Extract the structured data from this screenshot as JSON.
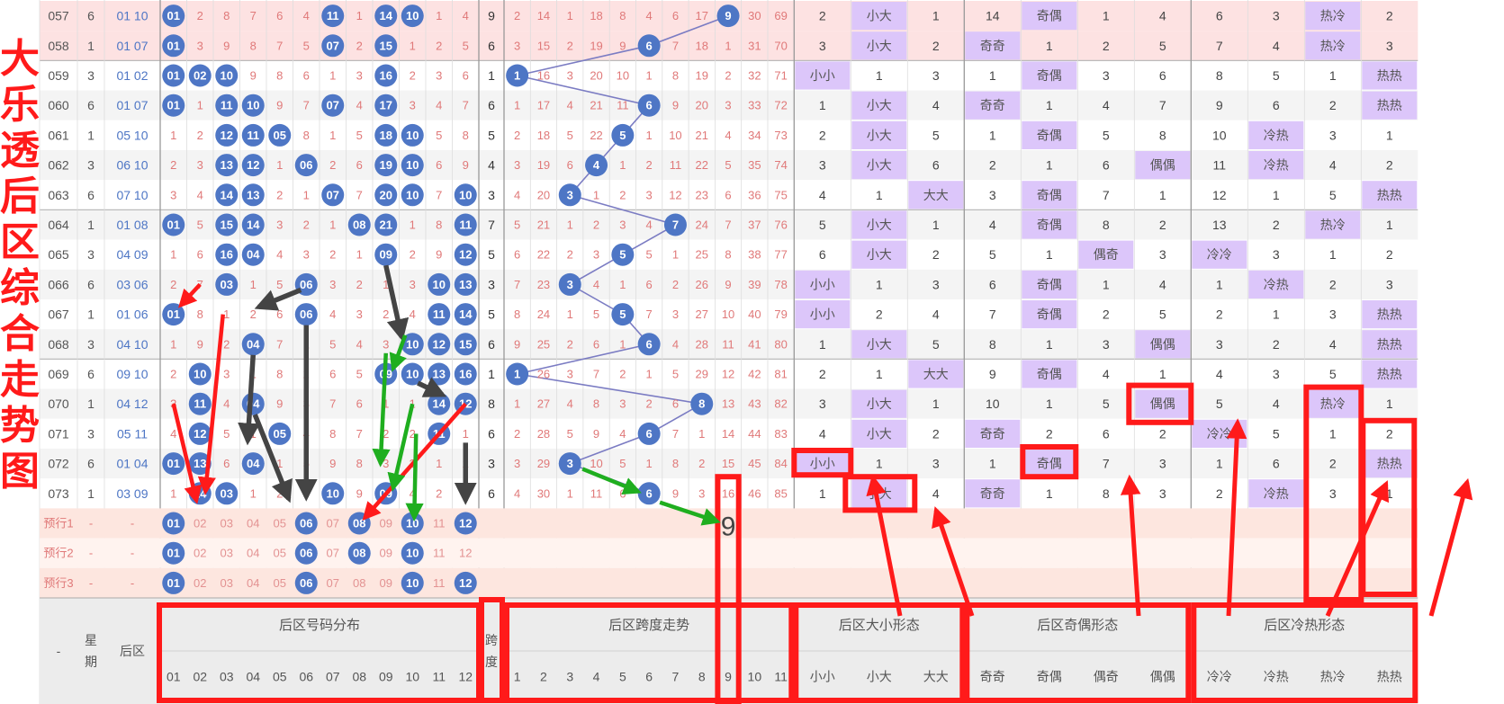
{
  "title_chars": [
    "大",
    "乐",
    "透",
    "后",
    "区",
    "综",
    "合",
    "走",
    "势",
    "图"
  ],
  "colors": {
    "ball": "#4e76c5",
    "miss_text": "#e07979",
    "odd_row_bg": "#fde2e2",
    "highlight_bg": "#dcc6fa",
    "trend_line": "#7b7cc3",
    "annotation_red": "#ff1a1a",
    "arrow_gray": "#444444",
    "arrow_green": "#1fae1f"
  },
  "chart_data": {
    "type": "table",
    "rows": [
      {
        "issue": "057",
        "week": "6",
        "back": "01 10",
        "dist": [
          "01",
          "2",
          "8",
          "7",
          "6",
          "4",
          "11",
          "1",
          "14",
          "10",
          "1",
          "4"
        ],
        "span": "9",
        "spanrow": [
          "2",
          "14",
          "1",
          "18",
          "8",
          "4",
          "6",
          "17",
          "9",
          "30",
          "69"
        ],
        "size": [
          "2",
          "小大",
          "1"
        ],
        "parity": [
          "14",
          "奇偶",
          "1",
          "4"
        ],
        "temp": [
          "6",
          "3",
          "热冷",
          "2"
        ]
      },
      {
        "issue": "058",
        "week": "1",
        "back": "01 07",
        "dist": [
          "01",
          "3",
          "9",
          "8",
          "7",
          "5",
          "07",
          "2",
          "15",
          "1",
          "2",
          "5"
        ],
        "span": "6",
        "spanrow": [
          "3",
          "15",
          "2",
          "19",
          "9",
          "6",
          "7",
          "18",
          "1",
          "31",
          "70"
        ],
        "size": [
          "3",
          "小大",
          "2"
        ],
        "parity": [
          "奇奇",
          "1",
          "2",
          "5"
        ],
        "temp": [
          "7",
          "4",
          "热冷",
          "3"
        ]
      },
      {
        "issue": "059",
        "week": "3",
        "back": "01 02",
        "dist": [
          "01",
          "02",
          "10",
          "9",
          "8",
          "6",
          "1",
          "3",
          "16",
          "2",
          "3",
          "6"
        ],
        "span": "1",
        "spanrow": [
          "1",
          "16",
          "3",
          "20",
          "10",
          "1",
          "8",
          "19",
          "2",
          "32",
          "71"
        ],
        "size": [
          "小小",
          "1",
          "3"
        ],
        "parity": [
          "1",
          "奇偶",
          "3",
          "6"
        ],
        "temp": [
          "8",
          "5",
          "1",
          "热热"
        ]
      },
      {
        "issue": "060",
        "week": "6",
        "back": "01 07",
        "dist": [
          "01",
          "1",
          "11",
          "10",
          "9",
          "7",
          "07",
          "4",
          "17",
          "3",
          "4",
          "7"
        ],
        "span": "6",
        "spanrow": [
          "1",
          "17",
          "4",
          "21",
          "11",
          "6",
          "9",
          "20",
          "3",
          "33",
          "72"
        ],
        "size": [
          "1",
          "小大",
          "4"
        ],
        "parity": [
          "奇奇",
          "1",
          "4",
          "7"
        ],
        "temp": [
          "9",
          "6",
          "2",
          "热热"
        ]
      },
      {
        "issue": "061",
        "week": "1",
        "back": "05 10",
        "dist": [
          "1",
          "2",
          "12",
          "11",
          "05",
          "8",
          "1",
          "5",
          "18",
          "10",
          "5",
          "8"
        ],
        "span": "5",
        "spanrow": [
          "2",
          "18",
          "5",
          "22",
          "5",
          "1",
          "10",
          "21",
          "4",
          "34",
          "73"
        ],
        "size": [
          "2",
          "小大",
          "5"
        ],
        "parity": [
          "1",
          "奇偶",
          "5",
          "8"
        ],
        "temp": [
          "10",
          "冷热",
          "3",
          "1"
        ]
      },
      {
        "issue": "062",
        "week": "3",
        "back": "06 10",
        "dist": [
          "2",
          "3",
          "13",
          "12",
          "1",
          "06",
          "2",
          "6",
          "19",
          "10",
          "6",
          "9"
        ],
        "span": "4",
        "spanrow": [
          "3",
          "19",
          "6",
          "4",
          "1",
          "2",
          "11",
          "22",
          "5",
          "35",
          "74"
        ],
        "size": [
          "3",
          "小大",
          "6"
        ],
        "parity": [
          "2",
          "1",
          "6",
          "偶偶"
        ],
        "temp": [
          "11",
          "冷热",
          "4",
          "2"
        ]
      },
      {
        "issue": "063",
        "week": "6",
        "back": "07 10",
        "dist": [
          "3",
          "4",
          "14",
          "13",
          "2",
          "1",
          "07",
          "7",
          "20",
          "10",
          "7",
          "10"
        ],
        "span": "3",
        "spanrow": [
          "4",
          "20",
          "3",
          "1",
          "2",
          "3",
          "12",
          "23",
          "6",
          "36",
          "75"
        ],
        "size": [
          "4",
          "1",
          "大大"
        ],
        "parity": [
          "3",
          "奇偶",
          "7",
          "1"
        ],
        "temp": [
          "12",
          "1",
          "5",
          "热热"
        ]
      },
      {
        "issue": "064",
        "week": "1",
        "back": "01 08",
        "dist": [
          "01",
          "5",
          "15",
          "14",
          "3",
          "2",
          "1",
          "08",
          "21",
          "1",
          "8",
          "11"
        ],
        "span": "7",
        "spanrow": [
          "5",
          "21",
          "1",
          "2",
          "3",
          "4",
          "7",
          "24",
          "7",
          "37",
          "76"
        ],
        "size": [
          "5",
          "小大",
          "1"
        ],
        "parity": [
          "4",
          "奇偶",
          "8",
          "2"
        ],
        "temp": [
          "13",
          "2",
          "热冷",
          "1"
        ]
      },
      {
        "issue": "065",
        "week": "3",
        "back": "04 09",
        "dist": [
          "1",
          "6",
          "16",
          "04",
          "4",
          "3",
          "2",
          "1",
          "09",
          "2",
          "9",
          "12"
        ],
        "span": "5",
        "spanrow": [
          "6",
          "22",
          "2",
          "3",
          "5",
          "5",
          "1",
          "25",
          "8",
          "38",
          "77"
        ],
        "size": [
          "6",
          "小大",
          "2"
        ],
        "parity": [
          "5",
          "1",
          "偶奇",
          "3"
        ],
        "temp": [
          "冷冷",
          "3",
          "1",
          "2"
        ]
      },
      {
        "issue": "066",
        "week": "6",
        "back": "03 06",
        "dist": [
          "2",
          "7",
          "03",
          "1",
          "5",
          "06",
          "3",
          "2",
          "1",
          "3",
          "10",
          "13"
        ],
        "span": "3",
        "spanrow": [
          "7",
          "23",
          "3",
          "4",
          "1",
          "6",
          "2",
          "26",
          "9",
          "39",
          "78"
        ],
        "size": [
          "小小",
          "1",
          "3"
        ],
        "parity": [
          "6",
          "奇偶",
          "1",
          "4"
        ],
        "temp": [
          "1",
          "冷热",
          "2",
          "3"
        ]
      },
      {
        "issue": "067",
        "week": "1",
        "back": "01 06",
        "dist": [
          "01",
          "8",
          "1",
          "2",
          "6",
          "06",
          "4",
          "3",
          "2",
          "4",
          "11",
          "14"
        ],
        "span": "5",
        "spanrow": [
          "8",
          "24",
          "1",
          "5",
          "5",
          "7",
          "3",
          "27",
          "10",
          "40",
          "79"
        ],
        "size": [
          "小小",
          "2",
          "4"
        ],
        "parity": [
          "7",
          "奇偶",
          "2",
          "5"
        ],
        "temp": [
          "2",
          "1",
          "3",
          "热热"
        ]
      },
      {
        "issue": "068",
        "week": "3",
        "back": "04 10",
        "dist": [
          "1",
          "9",
          "2",
          "04",
          "7",
          "1",
          "5",
          "4",
          "3",
          "10",
          "12",
          "15"
        ],
        "span": "6",
        "spanrow": [
          "9",
          "25",
          "2",
          "6",
          "1",
          "6",
          "4",
          "28",
          "11",
          "41",
          "80"
        ],
        "size": [
          "1",
          "小大",
          "5"
        ],
        "parity": [
          "8",
          "1",
          "3",
          "偶偶"
        ],
        "temp": [
          "3",
          "2",
          "4",
          "热热"
        ]
      },
      {
        "issue": "069",
        "week": "6",
        "back": "09 10",
        "dist": [
          "2",
          "10",
          "3",
          "1",
          "8",
          "2",
          "6",
          "5",
          "09",
          "10",
          "13",
          "16"
        ],
        "span": "1",
        "spanrow": [
          "1",
          "26",
          "3",
          "7",
          "2",
          "1",
          "5",
          "29",
          "12",
          "42",
          "81"
        ],
        "size": [
          "2",
          "1",
          "大大"
        ],
        "parity": [
          "9",
          "奇偶",
          "4",
          "1"
        ],
        "temp": [
          "4",
          "3",
          "5",
          "热热"
        ]
      },
      {
        "issue": "070",
        "week": "1",
        "back": "04 12",
        "dist": [
          "3",
          "11",
          "4",
          "04",
          "9",
          "3",
          "7",
          "6",
          "1",
          "1",
          "14",
          "12"
        ],
        "span": "8",
        "spanrow": [
          "1",
          "27",
          "4",
          "8",
          "3",
          "2",
          "6",
          "8",
          "13",
          "43",
          "82"
        ],
        "size": [
          "3",
          "小大",
          "1"
        ],
        "parity": [
          "10",
          "1",
          "5",
          "偶偶"
        ],
        "temp": [
          "5",
          "4",
          "热冷",
          "1"
        ]
      },
      {
        "issue": "071",
        "week": "3",
        "back": "05 11",
        "dist": [
          "4",
          "12",
          "5",
          "1",
          "05",
          "4",
          "8",
          "7",
          "2",
          "2",
          "11",
          "1"
        ],
        "span": "6",
        "spanrow": [
          "2",
          "28",
          "5",
          "9",
          "4",
          "6",
          "7",
          "1",
          "14",
          "44",
          "83"
        ],
        "size": [
          "4",
          "小大",
          "2"
        ],
        "parity": [
          "奇奇",
          "2",
          "6",
          "2"
        ],
        "temp": [
          "冷冷",
          "5",
          "1",
          "2"
        ]
      },
      {
        "issue": "072",
        "week": "6",
        "back": "01 04",
        "dist": [
          "01",
          "13",
          "6",
          "04",
          "1",
          "5",
          "9",
          "8",
          "3",
          "3",
          "1",
          "2"
        ],
        "span": "3",
        "spanrow": [
          "3",
          "29",
          "3",
          "10",
          "5",
          "1",
          "8",
          "2",
          "15",
          "45",
          "84"
        ],
        "size": [
          "小小",
          "1",
          "3"
        ],
        "parity": [
          "1",
          "奇偶",
          "7",
          "3"
        ],
        "temp": [
          "1",
          "6",
          "2",
          "热热"
        ]
      },
      {
        "issue": "073",
        "week": "1",
        "back": "03 09",
        "dist": [
          "1",
          "14",
          "03",
          "1",
          "2",
          "6",
          "10",
          "9",
          "09",
          "4",
          "2",
          "3"
        ],
        "span": "6",
        "spanrow": [
          "4",
          "30",
          "1",
          "11",
          "6",
          "6",
          "9",
          "3",
          "16",
          "46",
          "85"
        ],
        "size": [
          "1",
          "小大",
          "4"
        ],
        "parity": [
          "奇奇",
          "1",
          "8",
          "3"
        ],
        "temp": [
          "2",
          "冷热",
          "3",
          "1"
        ]
      }
    ],
    "pred_rows": [
      {
        "label": "预行1",
        "week": "-",
        "back": "-"
      },
      {
        "label": "预行2",
        "week": "-",
        "back": "-"
      },
      {
        "label": "预行3",
        "week": "-",
        "back": "-"
      }
    ],
    "pred_balls": [
      "01",
      "02",
      "03",
      "04",
      "05",
      "06",
      "07",
      "08",
      "09",
      "10",
      "11",
      "12"
    ],
    "pred_highlight": [
      [
        1,
        6,
        8,
        10,
        12
      ],
      [
        1,
        6,
        8,
        10
      ],
      [
        1,
        6,
        10,
        12
      ]
    ],
    "big_nine": "9",
    "header": {
      "dash": "-",
      "week": "星期",
      "back": "后区",
      "g_dist": "后区号码分布",
      "span": "跨度",
      "g_span": "后区跨度走势",
      "g_size": "后区大小形态",
      "g_parity": "后区奇偶形态",
      "g_temp": "后区冷热形态",
      "dist_nums": [
        "01",
        "02",
        "03",
        "04",
        "05",
        "06",
        "07",
        "08",
        "09",
        "10",
        "11",
        "12"
      ],
      "span_nums": [
        "1",
        "2",
        "3",
        "4",
        "5",
        "6",
        "7",
        "8",
        "9",
        "10",
        "11"
      ],
      "size_labels": [
        "小小",
        "小大",
        "大大"
      ],
      "parity_labels": [
        "奇奇",
        "奇偶",
        "偶奇",
        "偶偶"
      ],
      "temp_labels": [
        "冷冷",
        "冷热",
        "热冷",
        "热热"
      ]
    }
  }
}
